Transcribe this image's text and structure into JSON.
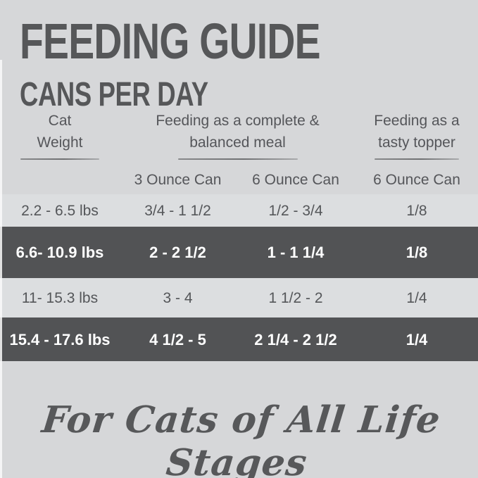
{
  "title": "FEEDING GUIDE",
  "subtitle": "CANS PER DAY",
  "table": {
    "col_groups": [
      {
        "line1": "Cat",
        "line2": "Weight"
      },
      {
        "line1": "Feeding as a complete &",
        "line2": "balanced meal"
      },
      {
        "line1": "Feeding as a",
        "line2": "tasty topper"
      }
    ],
    "sub_headers": [
      "3 Ounce Can",
      "6 Ounce Can",
      "6 Ounce Can"
    ],
    "rows": [
      {
        "weight": "2.2 - 6.5 lbs",
        "meal_3oz": "3/4 - 1 1/2",
        "meal_6oz": "1/2 - 3/4",
        "topper_6oz": "1/8",
        "highlighted": false
      },
      {
        "weight": "6.6- 10.9 lbs",
        "meal_3oz": "2 - 2 1/2",
        "meal_6oz": "1 - 1 1/4",
        "topper_6oz": "1/8",
        "highlighted": true
      },
      {
        "weight": "11- 15.3 lbs",
        "meal_3oz": "3 - 4",
        "meal_6oz": "1 1/2 - 2",
        "topper_6oz": "1/4",
        "highlighted": false
      },
      {
        "weight": "15.4 - 17.6 lbs",
        "meal_3oz": "4 1/2 - 5",
        "meal_6oz": "2 1/4 - 2 1/2",
        "topper_6oz": "1/4",
        "highlighted": true
      }
    ]
  },
  "footer": {
    "tagline": "For Cats of All Life Stages"
  },
  "colors": {
    "background": "#d6d7d9",
    "row_light": "#dcdee0",
    "row_dark": "#525355",
    "text_dark": "#565759",
    "text_on_dark": "#ffffff"
  }
}
